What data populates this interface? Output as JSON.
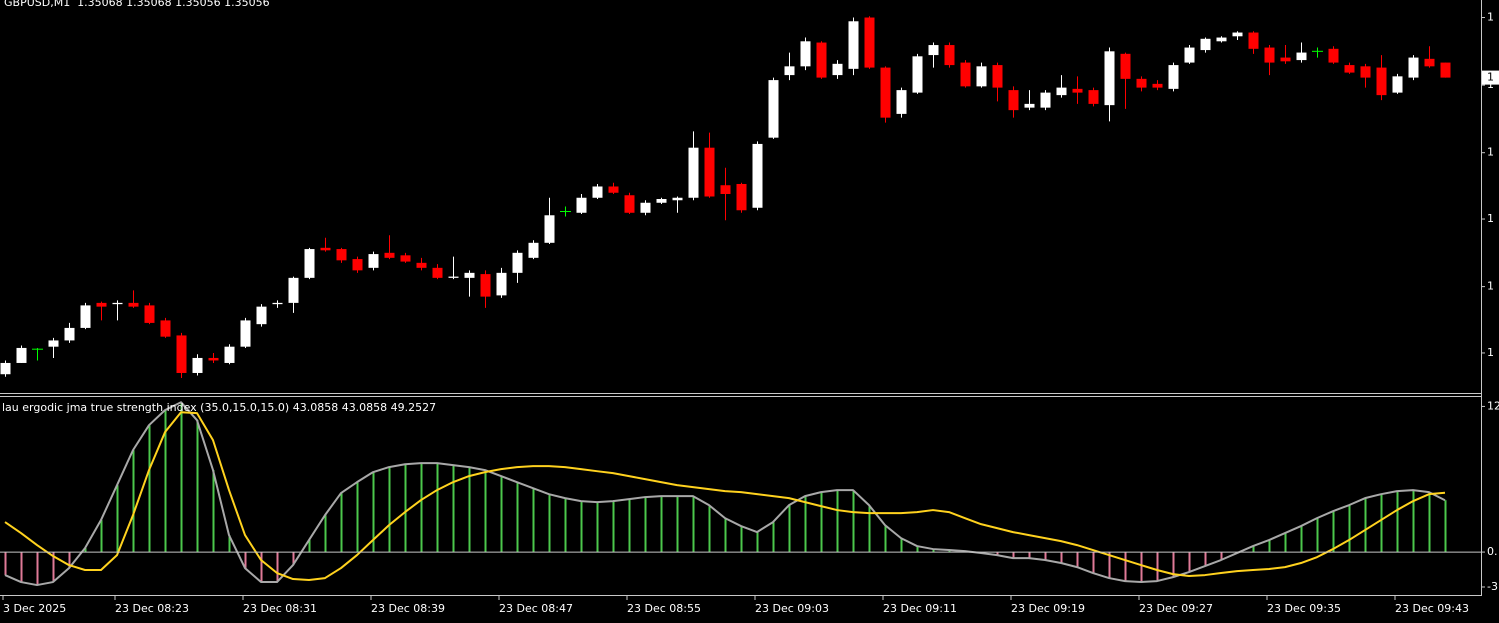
{
  "chart_data": [
    {
      "type": "candlestick",
      "title": "GBPUSD,M1  1.35068 1.35068 1.35056 1.35056",
      "categories": [
        "3 Dec 2025",
        null,
        null,
        null,
        null,
        null,
        null,
        "23 Dec 08:23",
        null,
        null,
        null,
        null,
        null,
        null,
        null,
        "23 Dec 08:31",
        null,
        null,
        null,
        null,
        null,
        null,
        null,
        "23 Dec 08:39",
        null,
        null,
        null,
        null,
        null,
        null,
        null,
        "23 Dec 08:47",
        null,
        null,
        null,
        null,
        null,
        null,
        null,
        "23 Dec 08:55",
        null,
        null,
        null,
        null,
        null,
        null,
        null,
        "23 Dec 09:03",
        null,
        null,
        null,
        null,
        null,
        null,
        null,
        "23 Dec 09:11",
        null,
        null,
        null,
        null,
        null,
        null,
        null,
        "23 Dec 09:19",
        null,
        null,
        null,
        null,
        null,
        null,
        null,
        "23 Dec 09:27",
        null,
        null,
        null,
        null,
        null,
        null,
        null,
        "23 Dec 09:35",
        null,
        null,
        null,
        null,
        null,
        null,
        null,
        "23 Dec 09:43",
        null,
        null,
        null
      ],
      "open": [
        1.34819,
        1.34828,
        1.34839,
        1.34841,
        1.34846,
        1.34856,
        1.34876,
        1.34875,
        1.34876,
        1.34874,
        1.34862,
        1.3485,
        1.3482,
        1.34832,
        1.34828,
        1.34841,
        1.34859,
        1.34875,
        1.34876,
        1.34896,
        1.3492,
        1.34919,
        1.34911,
        1.34904,
        1.34916,
        1.34914,
        1.34908,
        1.34904,
        1.34896,
        1.34896,
        1.34899,
        1.34882,
        1.349,
        1.34912,
        1.34924,
        1.34949,
        1.34948,
        1.3496,
        1.34969,
        1.34962,
        1.34948,
        1.34956,
        1.34958,
        1.3496,
        1.35,
        1.3497,
        1.34971,
        1.34952,
        1.35008,
        1.35058,
        1.35065,
        1.35084,
        1.35058,
        1.35063,
        1.35104,
        1.35064,
        1.35027,
        1.35044,
        1.35074,
        1.35082,
        1.35068,
        1.35049,
        1.35066,
        1.35046,
        1.35032,
        1.35032,
        1.35042,
        1.35047,
        1.35046,
        1.35034,
        1.35075,
        1.35055,
        1.35051,
        1.35047,
        1.35068,
        1.35078,
        1.35085,
        1.35089,
        1.35092,
        1.3508,
        1.35072,
        1.3507,
        1.35077,
        1.35079,
        1.35066,
        1.35065,
        1.35064,
        1.35044,
        1.35056,
        1.35071,
        1.35068
      ],
      "high": [
        1.3483,
        1.34842,
        1.3484,
        1.34848,
        1.3486,
        1.34876,
        1.34877,
        1.34878,
        1.34886,
        1.34876,
        1.34864,
        1.34852,
        1.34835,
        1.34836,
        1.34843,
        1.34864,
        1.34875,
        1.34878,
        1.34897,
        1.3492,
        1.34928,
        1.3492,
        1.34913,
        1.34917,
        1.3493,
        1.34916,
        1.34912,
        1.34907,
        1.34913,
        1.34902,
        1.34902,
        1.34904,
        1.34918,
        1.34926,
        1.3496,
        1.34953,
        1.34963,
        1.34971,
        1.34972,
        1.34964,
        1.34958,
        1.3496,
        1.34961,
        1.35013,
        1.35012,
        1.34984,
        1.34972,
        1.35005,
        1.35056,
        1.35076,
        1.35088,
        1.35085,
        1.3507,
        1.35104,
        1.35105,
        1.35065,
        1.35048,
        1.35075,
        1.35084,
        1.35084,
        1.3507,
        1.35068,
        1.35068,
        1.35049,
        1.35046,
        1.35046,
        1.35058,
        1.35057,
        1.35048,
        1.3508,
        1.35076,
        1.35057,
        1.35054,
        1.35068,
        1.35082,
        1.35088,
        1.35089,
        1.35093,
        1.35093,
        1.35082,
        1.35082,
        1.35084,
        1.3508,
        1.35081,
        1.35068,
        1.35067,
        1.35074,
        1.35059,
        1.35074,
        1.35081,
        1.35068
      ],
      "low": [
        1.34817,
        1.34828,
        1.3483,
        1.34832,
        1.34844,
        1.34855,
        1.34862,
        1.34862,
        1.34872,
        1.34859,
        1.34848,
        1.34816,
        1.34818,
        1.34828,
        1.34827,
        1.3484,
        1.34857,
        1.34872,
        1.34868,
        1.34895,
        1.34917,
        1.34908,
        1.349,
        1.34902,
        1.34911,
        1.34908,
        1.34902,
        1.34895,
        1.34895,
        1.34881,
        1.34872,
        1.3488,
        1.34892,
        1.34911,
        1.34923,
        1.34945,
        1.34947,
        1.34959,
        1.34963,
        1.34947,
        1.34946,
        1.34955,
        1.34948,
        1.34958,
        1.3496,
        1.34942,
        1.34948,
        1.3495,
        1.35007,
        1.35054,
        1.35062,
        1.35055,
        1.35055,
        1.35058,
        1.35063,
        1.3502,
        1.35024,
        1.35043,
        1.35064,
        1.35064,
        1.35048,
        1.35048,
        1.35037,
        1.35024,
        1.3503,
        1.3503,
        1.3504,
        1.35035,
        1.35033,
        1.35021,
        1.35031,
        1.35045,
        1.35046,
        1.35045,
        1.35067,
        1.35076,
        1.35084,
        1.35086,
        1.35075,
        1.35058,
        1.35067,
        1.35068,
        1.35072,
        1.35067,
        1.35059,
        1.35048,
        1.35038,
        1.35043,
        1.35054,
        1.35064,
        1.35056
      ],
      "close": [
        1.34828,
        1.3484,
        1.34839,
        1.34846,
        1.34856,
        1.34874,
        1.34873,
        1.34876,
        1.34873,
        1.3486,
        1.34849,
        1.3482,
        1.34832,
        1.3483,
        1.34841,
        1.34862,
        1.34873,
        1.34876,
        1.34896,
        1.34919,
        1.34918,
        1.3491,
        1.34902,
        1.34915,
        1.34912,
        1.34909,
        1.34904,
        1.34896,
        1.34897,
        1.349,
        1.34881,
        1.349,
        1.34916,
        1.34924,
        1.34946,
        1.34949,
        1.3496,
        1.34969,
        1.34964,
        1.34948,
        1.34956,
        1.34959,
        1.3496,
        1.35,
        1.34961,
        1.34963,
        1.3495,
        1.35003,
        1.35054,
        1.35065,
        1.35085,
        1.35056,
        1.35067,
        1.35101,
        1.35064,
        1.35024,
        1.35046,
        1.35073,
        1.35082,
        1.35066,
        1.35049,
        1.35065,
        1.35048,
        1.3503,
        1.35035,
        1.35044,
        1.35048,
        1.35044,
        1.35035,
        1.35077,
        1.35055,
        1.35048,
        1.35048,
        1.35066,
        1.3508,
        1.35087,
        1.35088,
        1.35092,
        1.35079,
        1.35068,
        1.35069,
        1.35076,
        1.35077,
        1.35068,
        1.3506,
        1.35056,
        1.35042,
        1.35057,
        1.35072,
        1.35065,
        1.35056
      ],
      "up_color": "#ffffff",
      "down_color": "#ff0000",
      "doji_color": "#00ff00",
      "ylim": [
        1.34804,
        1.35118
      ],
      "yticks": [
        {
          "value": 1.35104,
          "label": "1"
        },
        {
          "value": 1.3505,
          "label": "1"
        },
        {
          "value": 1.34996,
          "label": "1"
        },
        {
          "value": 1.34943,
          "label": "1"
        },
        {
          "value": 1.34889,
          "label": "1"
        },
        {
          "value": 1.34836,
          "label": "1"
        }
      ],
      "last_price": {
        "value": 1.35056,
        "label": "1"
      },
      "grid": false
    },
    {
      "type": "oscillator",
      "title": "lau ergodic jma true strength index (35.0,15.0,15.0) 43.0858 43.0858 49.2527",
      "series": [
        {
          "style": "histogram",
          "up_color": "#4cc84c",
          "down_color": "#e07a98",
          "line_color": "#a8a8a8",
          "values": [
            -19.1,
            -24.9,
            -27.4,
            -24.9,
            -13.3,
            3.3,
            26.6,
            55.6,
            84.7,
            105.4,
            117.9,
            124.5,
            109.6,
            68.1,
            14.1,
            -13.3,
            -24.9,
            -24.9,
            -10.8,
            10,
            30.7,
            49.0,
            58.1,
            66.4,
            70.6,
            73.0,
            73.9,
            73.9,
            72.2,
            70.6,
            68.1,
            63.1,
            58.1,
            53.1,
            48.1,
            44.8,
            42.3,
            41.5,
            42.3,
            44.0,
            45.7,
            46.5,
            46.5,
            46.5,
            39.0,
            28.2,
            21.6,
            16.6,
            24.9,
            39.0,
            46.5,
            49.8,
            51.5,
            51.5,
            39.0,
            22.4,
            11.6,
            5.0,
            2.5,
            1.7,
            0.8,
            -0.8,
            -2.5,
            -5.0,
            -5.0,
            -6.6,
            -9.1,
            -12.5,
            -17.4,
            -21.6,
            -24.1,
            -24.9,
            -24.1,
            -20.8,
            -16.6,
            -11.6,
            -6.6,
            -0.8,
            5.0,
            10,
            15.8,
            21.6,
            28.2,
            34.0,
            39.0,
            44.8,
            48.1,
            50.6,
            51.5,
            49.8,
            43.0858
          ]
        },
        {
          "style": "line",
          "color": "#ffd21e",
          "values": [
            24.9,
            15.8,
            5.8,
            -3.3,
            -10.8,
            -14.9,
            -14.9,
            -2.5,
            30.7,
            68.1,
            99.6,
            116.2,
            115.4,
            93.0,
            51.5,
            14.1,
            -6.6,
            -17.4,
            -22.4,
            -23.2,
            -21.6,
            -13.3,
            -2.5,
            10,
            22.4,
            33.2,
            43.2,
            51.5,
            58.1,
            63.1,
            66.4,
            68.9,
            70.6,
            71.4,
            71.4,
            70.6,
            68.9,
            67.2,
            65.6,
            63.1,
            60.6,
            58.1,
            55.6,
            54.0,
            52.3,
            50.6,
            49.8,
            48.1,
            46.5,
            44.8,
            41.5,
            38.2,
            34.9,
            33.2,
            32.4,
            32.4,
            32.4,
            33.2,
            34.9,
            33.2,
            28.2,
            23.2,
            19.9,
            16.6,
            14.1,
            11.6,
            9.1,
            5.8,
            1.7,
            -2.5,
            -6.6,
            -10.8,
            -14.9,
            -18.3,
            -19.9,
            -19.1,
            -17.4,
            -15.8,
            -14.9,
            -14.1,
            -12.5,
            -9.1,
            -4.2,
            2.5,
            10,
            18.3,
            26.6,
            34.9,
            42.3,
            48.1,
            49.2527
          ]
        }
      ],
      "ylim": [
        -34,
        128
      ],
      "yticks": [
        {
          "value": 121,
          "label": "12"
        },
        {
          "value": 0,
          "label": "0."
        },
        {
          "value": -29,
          "label": "-3"
        }
      ],
      "grid": false
    }
  ]
}
